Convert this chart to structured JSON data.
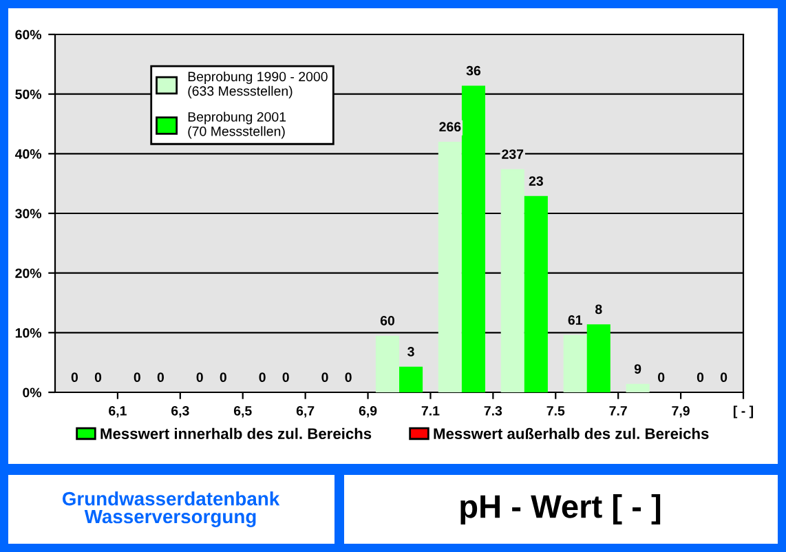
{
  "chart_data": {
    "type": "bar",
    "title": "pH - Wert [ - ]",
    "x": [
      6.0,
      6.2,
      6.4,
      6.6,
      6.8,
      7.0,
      7.2,
      7.4,
      7.6,
      7.8,
      8.0
    ],
    "xlim": [
      5.9,
      8.1
    ],
    "xticks": [
      {
        "value": 6.1,
        "label": "6,1"
      },
      {
        "value": 6.3,
        "label": "6,3"
      },
      {
        "value": 6.5,
        "label": "6,5"
      },
      {
        "value": 6.7,
        "label": "6,7"
      },
      {
        "value": 6.9,
        "label": "6,9"
      },
      {
        "value": 7.1,
        "label": "7.1"
      },
      {
        "value": 7.3,
        "label": "7.3"
      },
      {
        "value": 7.5,
        "label": "7.5"
      },
      {
        "value": 7.7,
        "label": "7.7"
      },
      {
        "value": 7.9,
        "label": "7,9"
      },
      {
        "value": 8.1,
        "label": "[ - ]"
      }
    ],
    "series": [
      {
        "name": "Beprobung 1990 - 2000\n(633 Messstellen)",
        "color": "#ccffcc",
        "colors": [
          "#ffc8a0",
          "#ffc8a0",
          "#ffc8a0",
          "#ccffcc",
          "#ccffcc",
          "#ccffcc",
          "#ccffcc",
          "#ccffcc",
          "#ccffcc",
          "#ccffcc",
          "#ccffcc"
        ],
        "values": [
          0,
          0,
          0,
          0,
          0,
          9.5,
          42.0,
          37.4,
          9.6,
          1.4,
          0
        ]
      },
      {
        "name": "Beprobung 2001\n(70 Messstellen)",
        "color": "#00ff00",
        "colors": [
          "#ff0000",
          "#ff0000",
          "#ff0000",
          "#00ff00",
          "#00ff00",
          "#00ff00",
          "#00ff00",
          "#00ff00",
          "#00ff00",
          "#00ff00",
          "#00ff00"
        ],
        "values": [
          0,
          0,
          0,
          0,
          0,
          4.3,
          51.4,
          32.9,
          11.4,
          0,
          0
        ]
      }
    ],
    "ylim": [
      0,
      60
    ],
    "yticks": [
      {
        "value": 0,
        "label": "0%"
      },
      {
        "value": 10,
        "label": "10%"
      },
      {
        "value": 20,
        "label": "20%"
      },
      {
        "value": 30,
        "label": "30%"
      },
      {
        "value": 40,
        "label": "40%"
      },
      {
        "value": 50,
        "label": "50%"
      },
      {
        "value": 60,
        "label": "60%"
      }
    ],
    "grid": "y",
    "legend": "top left",
    "annotations": [
      "Messwert innerhalb des zul. Bereichs",
      "Messwert außerhalb des zul. Bereichs",
      "Grundwasserdatenbank\nWasserversorgung",
      {
        "text": "0",
        "x": 6.0,
        "y": 0
      },
      {
        "text": "0",
        "x": 6.2,
        "y": 0
      },
      {
        "text": "0",
        "x": 6.4,
        "y": 0
      },
      {
        "text": "0",
        "x": 6.6,
        "y": 0
      },
      {
        "text": "0",
        "x": 6.8,
        "y": 0
      },
      {
        "text": "60",
        "x": 7.0,
        "y": 9.5
      },
      {
        "text": "266",
        "x": 7.2,
        "y": 42.0
      },
      {
        "text": "237",
        "x": 7.4,
        "y": 37.4
      },
      {
        "text": "61",
        "x": 7.6,
        "y": 9.6
      },
      {
        "text": "9",
        "x": 7.8,
        "y": 1.4
      },
      {
        "text": "0",
        "x": 8.0,
        "y": 0
      },
      {
        "text": "0",
        "x": 6.0,
        "y": 0
      },
      {
        "text": "0",
        "x": 6.2,
        "y": 0
      },
      {
        "text": "0",
        "x": 6.4,
        "y": 0
      },
      {
        "text": "0",
        "x": 6.6,
        "y": 0
      },
      {
        "text": "0",
        "x": 6.8,
        "y": 0
      },
      {
        "text": "3",
        "x": 7.0,
        "y": 4.3
      },
      {
        "text": "36",
        "x": 7.2,
        "y": 51.4
      },
      {
        "text": "23",
        "x": 7.4,
        "y": 32.9
      },
      {
        "text": "8",
        "x": 7.6,
        "y": 11.4
      },
      {
        "text": "0",
        "x": 7.8,
        "y": 0
      },
      {
        "text": "0",
        "x": 8.0,
        "y": 0
      }
    ]
  }
}
